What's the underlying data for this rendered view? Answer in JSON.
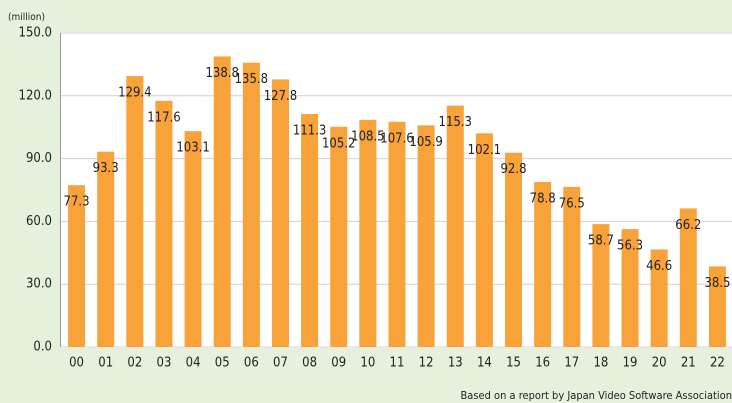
{
  "chart_data": {
    "type": "bar",
    "unit_label": "(million)",
    "source": "Based on a report by Japan Video Software Association",
    "categories": [
      "00",
      "01",
      "02",
      "03",
      "04",
      "05",
      "06",
      "07",
      "08",
      "09",
      "10",
      "11",
      "12",
      "13",
      "14",
      "15",
      "16",
      "17",
      "18",
      "19",
      "20",
      "21",
      "22"
    ],
    "values": [
      77.3,
      93.3,
      129.4,
      117.6,
      103.1,
      138.8,
      135.8,
      127.8,
      111.3,
      105.2,
      108.5,
      107.6,
      105.9,
      115.3,
      102.1,
      92.8,
      78.8,
      76.5,
      58.7,
      56.3,
      46.6,
      66.2,
      38.5
    ],
    "color": "#f8a23a",
    "ylim": [
      0,
      150
    ],
    "yticks": [
      {
        "value": 0,
        "label": "0.0"
      },
      {
        "value": 30,
        "label": "30.0"
      },
      {
        "value": 60,
        "label": "60.0"
      },
      {
        "value": 90,
        "label": "90.0"
      },
      {
        "value": 120,
        "label": "120.0"
      },
      {
        "value": 150,
        "label": "150.0"
      }
    ],
    "grid": true
  }
}
